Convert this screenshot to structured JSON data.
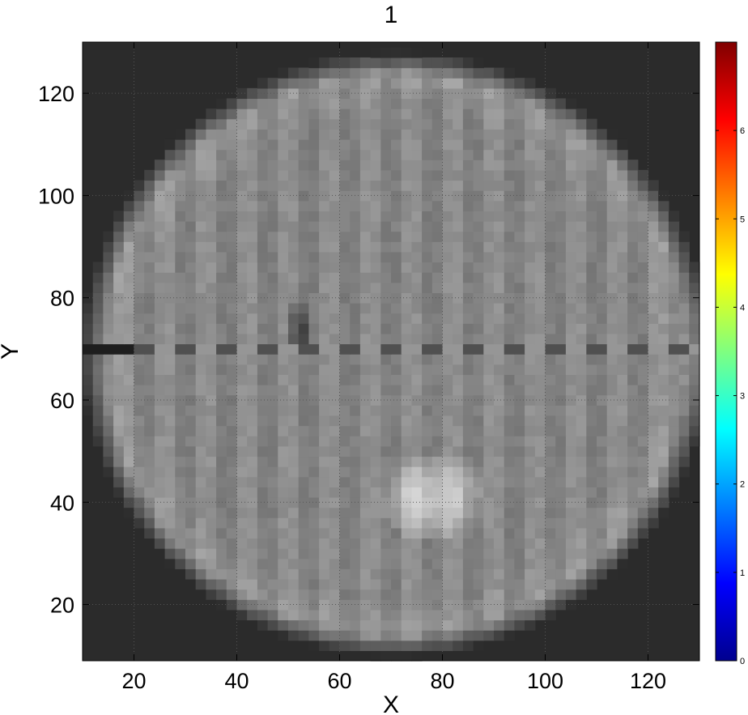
{
  "chart_data": {
    "type": "heatmap",
    "title": "1",
    "xlabel": "X",
    "ylabel": "Y",
    "xlim": [
      10,
      130
    ],
    "ylim": [
      9,
      130
    ],
    "xticks": [
      20,
      40,
      60,
      80,
      100,
      120
    ],
    "yticks": [
      20,
      40,
      60,
      80,
      100,
      120
    ],
    "grid": true,
    "colormap": "jet",
    "colorbar": {
      "range": [
        0,
        7
      ],
      "ticks": [
        0,
        1,
        2,
        3,
        4,
        5,
        6
      ]
    },
    "background_color": "#2b2b2b",
    "image_description_values": {
      "disc_center": [
        71,
        69
      ],
      "disc_radius_x": 60,
      "disc_radius_y": 58,
      "stripe_spacing_x": 4,
      "bright_line_y": 70,
      "bright_blob_center": [
        77,
        40
      ],
      "dark_spot_center": [
        51,
        73
      ]
    }
  }
}
